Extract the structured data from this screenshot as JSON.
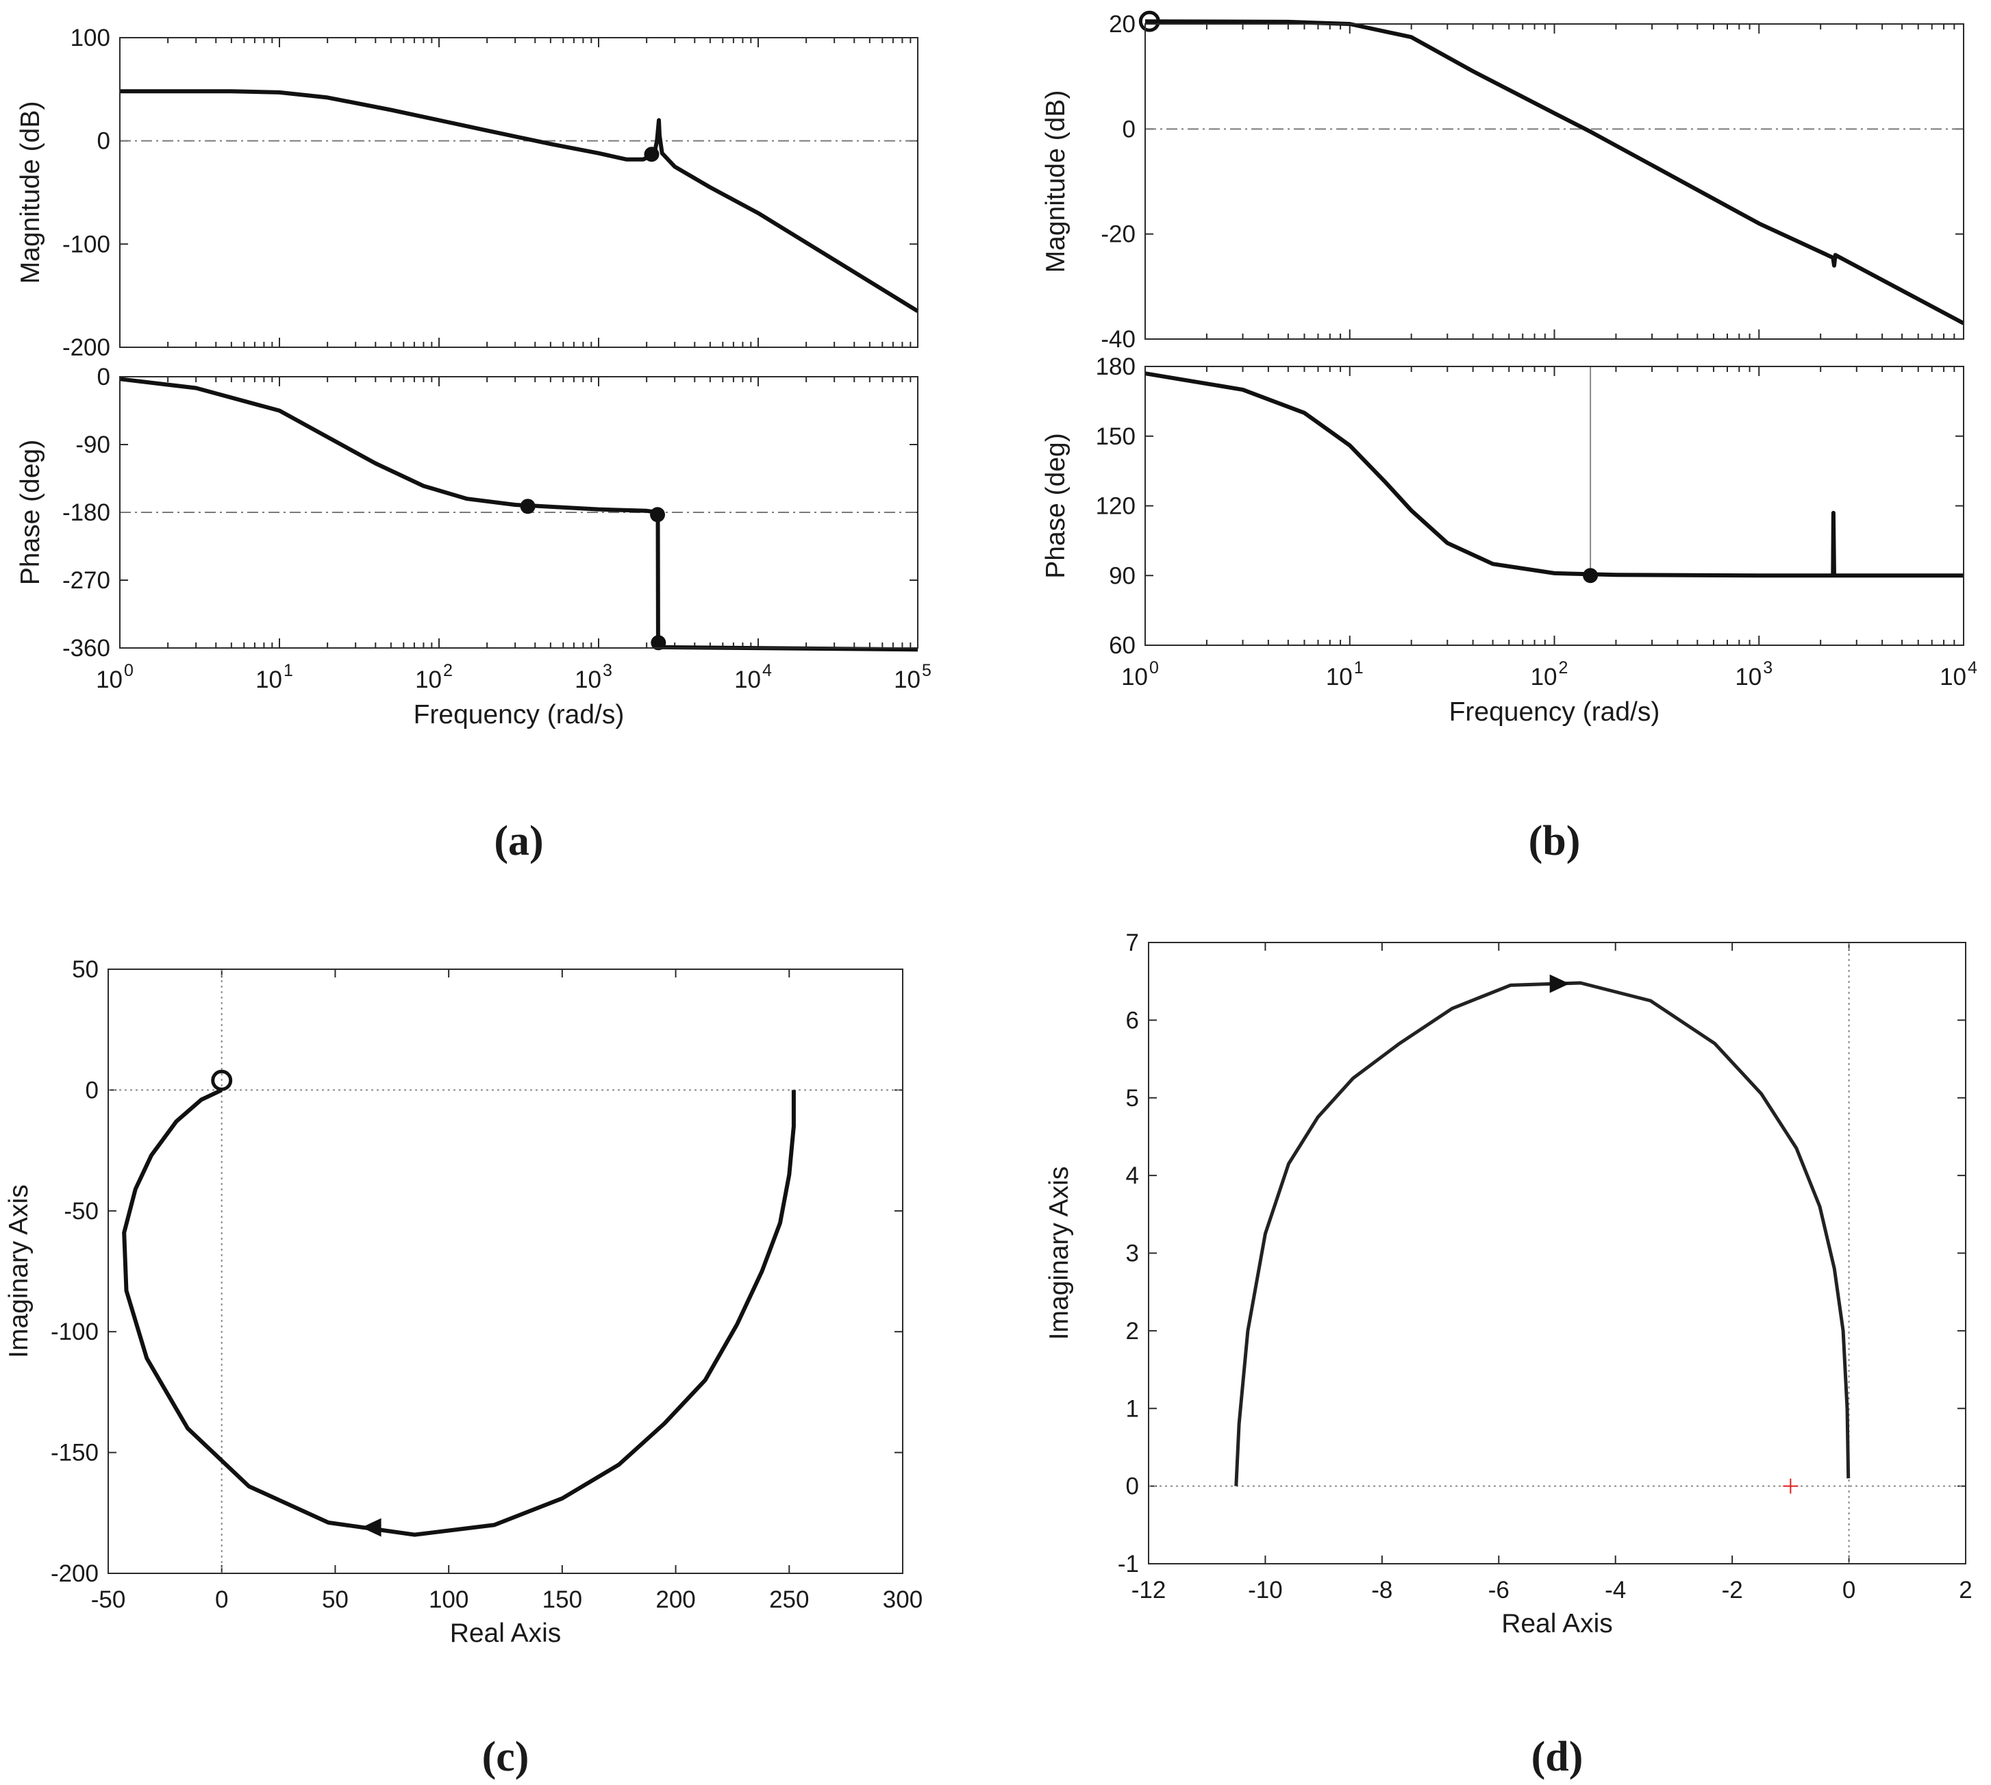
{
  "chart_data": [
    {
      "id": "a",
      "type": "line",
      "panel_label": "(a)",
      "subtype": "bode",
      "xlabel": "Frequency  (rad/s)",
      "xscale": "log",
      "xlim": [
        1,
        100000
      ],
      "x_ticks": [
        1,
        10,
        100,
        1000,
        10000,
        100000
      ],
      "x_tick_labels": [
        {
          "base": "10",
          "exp": "0"
        },
        {
          "base": "10",
          "exp": "1"
        },
        {
          "base": "10",
          "exp": "2"
        },
        {
          "base": "10",
          "exp": "3"
        },
        {
          "base": "10",
          "exp": "4"
        },
        {
          "base": "10",
          "exp": "5"
        }
      ],
      "magnitude": {
        "ylabel": "Magnitude (dB)",
        "ylim": [
          -200,
          100
        ],
        "y_ticks": [
          100,
          0,
          -100,
          -200
        ],
        "y_tick_labels": [
          "100",
          "0",
          "-100",
          "-200"
        ],
        "reference": 0,
        "points": [
          [
            1,
            48
          ],
          [
            5,
            48
          ],
          [
            10,
            47
          ],
          [
            20,
            42
          ],
          [
            50,
            30
          ],
          [
            100,
            20
          ],
          [
            200,
            10
          ],
          [
            500,
            -3
          ],
          [
            1000,
            -12
          ],
          [
            1500,
            -18
          ],
          [
            1900,
            -18
          ],
          [
            2100,
            -15
          ],
          [
            2250,
            -10
          ],
          [
            2320,
            0
          ],
          [
            2360,
            12
          ],
          [
            2385,
            20
          ],
          [
            2410,
            5
          ],
          [
            2500,
            -12
          ],
          [
            3000,
            -25
          ],
          [
            5000,
            -45
          ],
          [
            10000,
            -70
          ],
          [
            100000,
            -165
          ]
        ],
        "markers": [
          {
            "x": 2150,
            "y": -13
          }
        ]
      },
      "phase": {
        "ylabel": "Phase (deg)",
        "ylim": [
          -360,
          0
        ],
        "y_ticks": [
          0,
          -90,
          -180,
          -270,
          -360
        ],
        "y_tick_labels": [
          "0",
          "-90",
          "-180",
          "-270",
          "-360"
        ],
        "reference": -180,
        "points": [
          [
            1,
            -3
          ],
          [
            3,
            -15
          ],
          [
            10,
            -45
          ],
          [
            20,
            -80
          ],
          [
            40,
            -115
          ],
          [
            80,
            -145
          ],
          [
            150,
            -162
          ],
          [
            300,
            -170
          ],
          [
            1000,
            -176
          ],
          [
            2000,
            -178
          ],
          [
            2350,
            -180
          ],
          [
            2360,
            -350
          ],
          [
            2400,
            -359
          ],
          [
            100000,
            -362
          ]
        ],
        "markers": [
          {
            "x": 360,
            "y": -172
          },
          {
            "x": 2340,
            "y": -183
          },
          {
            "x": 2370,
            "y": -353
          }
        ]
      }
    },
    {
      "id": "b",
      "type": "line",
      "panel_label": "(b)",
      "subtype": "bode",
      "xlabel": "Frequency  (rad/s)",
      "xscale": "log",
      "xlim": [
        1,
        10000
      ],
      "x_ticks": [
        1,
        10,
        100,
        1000,
        10000
      ],
      "x_tick_labels": [
        {
          "base": "10",
          "exp": "0"
        },
        {
          "base": "10",
          "exp": "1"
        },
        {
          "base": "10",
          "exp": "2"
        },
        {
          "base": "10",
          "exp": "3"
        },
        {
          "base": "10",
          "exp": "4"
        }
      ],
      "magnitude": {
        "ylabel": "Magnitude (dB)",
        "ylim": [
          -40,
          20
        ],
        "y_ticks": [
          20,
          0,
          -20,
          -40
        ],
        "y_tick_labels": [
          "20",
          "0",
          "-20",
          "-40"
        ],
        "reference": 0,
        "points": [
          [
            1,
            20.5
          ],
          [
            5,
            20.4
          ],
          [
            10,
            20
          ],
          [
            20,
            17.5
          ],
          [
            40,
            11
          ],
          [
            100,
            3
          ],
          [
            150,
            -0.5
          ],
          [
            1000,
            -18
          ],
          [
            2300,
            -24.5
          ],
          [
            2330,
            -26
          ],
          [
            2360,
            -24
          ],
          [
            10000,
            -37
          ]
        ],
        "markers": [
          {
            "x": 1.05,
            "y": 20.5,
            "style": "open"
          }
        ]
      },
      "phase": {
        "ylabel": "Phase (deg)",
        "ylim": [
          60,
          180
        ],
        "y_ticks": [
          180,
          150,
          120,
          90,
          60
        ],
        "y_tick_labels": [
          "180",
          "150",
          "120",
          "90",
          "60"
        ],
        "reference": 180,
        "vertical_line": 150,
        "points": [
          [
            1,
            177
          ],
          [
            3,
            170
          ],
          [
            6,
            160
          ],
          [
            10,
            146
          ],
          [
            15,
            130
          ],
          [
            20,
            118
          ],
          [
            30,
            104
          ],
          [
            50,
            95
          ],
          [
            100,
            91
          ],
          [
            200,
            90.3
          ],
          [
            1000,
            90
          ],
          [
            2300,
            90
          ],
          [
            2310,
            117
          ],
          [
            2330,
            90
          ],
          [
            10000,
            90
          ]
        ],
        "markers": [
          {
            "x": 150,
            "y": 90
          }
        ]
      }
    },
    {
      "id": "c",
      "type": "line",
      "panel_label": "(c)",
      "subtype": "nyquist",
      "xlabel": "Real Axis",
      "ylabel": "Imaginary Axis",
      "xlim": [
        -50,
        300
      ],
      "ylim": [
        -200,
        50
      ],
      "x_ticks": [
        -50,
        0,
        50,
        100,
        150,
        200,
        250,
        300
      ],
      "x_tick_labels": [
        "-50",
        "0",
        "50",
        "100",
        "150",
        "200",
        "250",
        "300"
      ],
      "y_ticks": [
        50,
        0,
        -50,
        -100,
        -150,
        -200
      ],
      "y_tick_labels": [
        "50",
        "0",
        "-50",
        "-100",
        "-150",
        "-200"
      ],
      "points": [
        [
          252,
          0
        ],
        [
          252,
          -15
        ],
        [
          250,
          -35
        ],
        [
          246,
          -55
        ],
        [
          238,
          -75
        ],
        [
          227,
          -97
        ],
        [
          213,
          -120
        ],
        [
          195,
          -138
        ],
        [
          175,
          -155
        ],
        [
          150,
          -169
        ],
        [
          120,
          -180
        ],
        [
          85,
          -184
        ],
        [
          47,
          -179
        ],
        [
          12,
          -164
        ],
        [
          -15,
          -140
        ],
        [
          -33,
          -111
        ],
        [
          -42,
          -83
        ],
        [
          -43,
          -59
        ],
        [
          -38,
          -41
        ],
        [
          -31,
          -27
        ],
        [
          -20,
          -13
        ],
        [
          -9,
          -4
        ],
        [
          0,
          0
        ]
      ],
      "markers": [
        {
          "x": 0,
          "y": 4,
          "style": "open"
        }
      ],
      "arrows": [
        {
          "x": 67,
          "y": -181,
          "direction": "left"
        }
      ],
      "critical_point": [
        -1,
        0
      ]
    },
    {
      "id": "d",
      "type": "line",
      "panel_label": "(d)",
      "subtype": "nyquist",
      "xlabel": "Real Axis",
      "ylabel": "Imaginary Axis",
      "xlim": [
        -12,
        2
      ],
      "ylim": [
        -1,
        7
      ],
      "x_ticks": [
        -12,
        -10,
        -8,
        -6,
        -4,
        -2,
        0,
        2
      ],
      "x_tick_labels": [
        "-12",
        "-10",
        "-8",
        "-6",
        "-4",
        "-2",
        "0",
        "2"
      ],
      "y_ticks": [
        7,
        6,
        5,
        4,
        3,
        2,
        1,
        0,
        -1
      ],
      "y_tick_labels": [
        "7",
        "6",
        "5",
        "4",
        "3",
        "2",
        "1",
        "0",
        "-1"
      ],
      "points": [
        [
          -10.5,
          0
        ],
        [
          -10.45,
          0.8
        ],
        [
          -10.3,
          2
        ],
        [
          -10,
          3.25
        ],
        [
          -9.6,
          4.15
        ],
        [
          -9.1,
          4.75
        ],
        [
          -8.5,
          5.25
        ],
        [
          -7.7,
          5.7
        ],
        [
          -6.8,
          6.15
        ],
        [
          -5.8,
          6.45
        ],
        [
          -4.6,
          6.48
        ],
        [
          -3.4,
          6.25
        ],
        [
          -2.3,
          5.7
        ],
        [
          -1.5,
          5.05
        ],
        [
          -0.9,
          4.35
        ],
        [
          -0.5,
          3.6
        ],
        [
          -0.25,
          2.8
        ],
        [
          -0.1,
          2
        ],
        [
          -0.03,
          1
        ],
        [
          -0.01,
          0.1
        ]
      ],
      "arrows": [
        {
          "x": -5.0,
          "y": 6.47,
          "direction": "right"
        }
      ],
      "critical_point": [
        -1,
        0
      ],
      "critical_color": "#e02020"
    }
  ]
}
